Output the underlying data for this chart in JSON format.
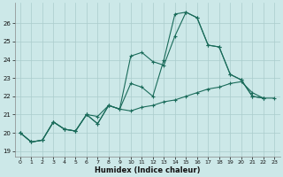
{
  "xlabel": "Humidex (Indice chaleur)",
  "bg_color": "#cce8e8",
  "grid_color": "#aacccc",
  "line_color": "#1a6b5a",
  "xlim": [
    -0.5,
    23.5
  ],
  "ylim": [
    18.7,
    27.1
  ],
  "yticks": [
    19,
    20,
    21,
    22,
    23,
    24,
    25,
    26
  ],
  "xticks": [
    0,
    1,
    2,
    3,
    4,
    5,
    6,
    7,
    8,
    9,
    10,
    11,
    12,
    13,
    14,
    15,
    16,
    17,
    18,
    19,
    20,
    21,
    22,
    23
  ],
  "series": [
    {
      "x": [
        0,
        1,
        2,
        3,
        4,
        5,
        6,
        7,
        8,
        9,
        10,
        11,
        12,
        13,
        14,
        15,
        16,
        17,
        18,
        19,
        20,
        21,
        22,
        23
      ],
      "y": [
        20.0,
        19.5,
        19.6,
        20.6,
        20.2,
        20.1,
        21.0,
        20.5,
        21.5,
        21.3,
        21.2,
        21.4,
        21.5,
        21.7,
        21.8,
        22.0,
        22.2,
        22.4,
        22.5,
        22.7,
        22.8,
        22.2,
        21.9,
        21.9
      ]
    },
    {
      "x": [
        0,
        1,
        2,
        3,
        4,
        5,
        6,
        7,
        8,
        9,
        10,
        11,
        12,
        13,
        14,
        15,
        16,
        17,
        18,
        19,
        20,
        21,
        22
      ],
      "y": [
        20.0,
        19.5,
        19.6,
        20.6,
        20.2,
        20.1,
        21.0,
        20.9,
        21.5,
        21.3,
        22.7,
        22.5,
        22.0,
        24.0,
        26.5,
        26.6,
        26.3,
        24.8,
        24.7,
        23.2,
        22.9,
        22.0,
        21.9
      ]
    },
    {
      "x": [
        0,
        1,
        2,
        3,
        4,
        5,
        6,
        7,
        8,
        9,
        10,
        11,
        12,
        13,
        14,
        15,
        16,
        17,
        18,
        19,
        20,
        21,
        22
      ],
      "y": [
        20.0,
        19.5,
        19.6,
        20.6,
        20.2,
        20.1,
        21.0,
        20.5,
        21.5,
        21.3,
        24.2,
        24.4,
        23.9,
        23.7,
        25.3,
        26.6,
        26.3,
        24.8,
        24.7,
        23.2,
        22.9,
        22.0,
        21.9
      ]
    }
  ]
}
